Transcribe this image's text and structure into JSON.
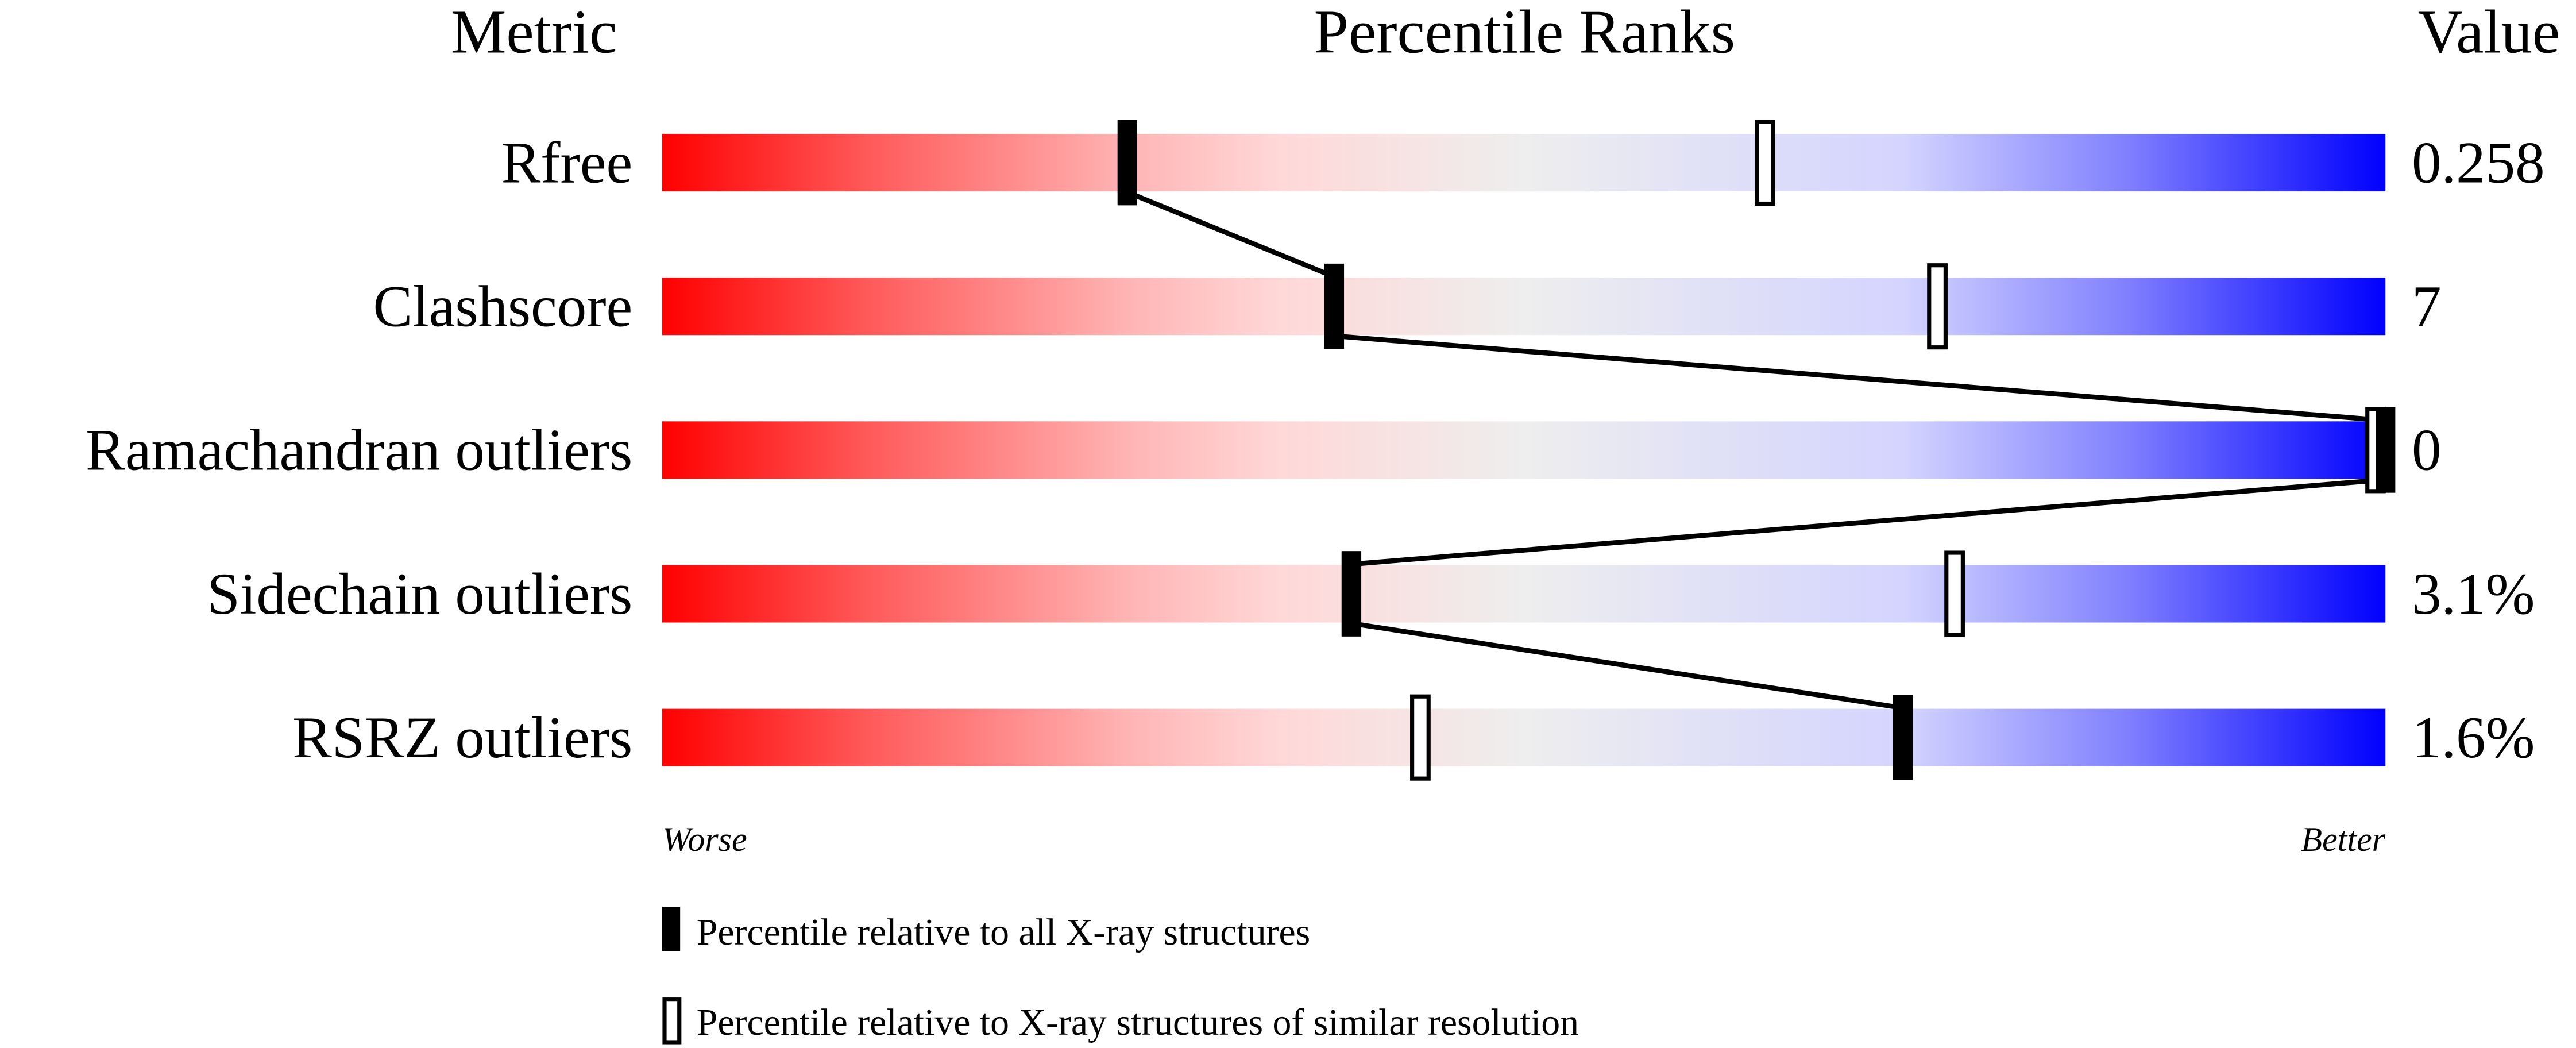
{
  "chart_data": {
    "type": "percentile-slider",
    "headers": {
      "metric": "Metric",
      "ranks": "Percentile Ranks",
      "value": "Value"
    },
    "xlim": [
      0,
      100
    ],
    "axis_labels": {
      "left": "Worse",
      "right": "Better"
    },
    "colors": {
      "worse": "#ff0000",
      "middle": "#eeeeee",
      "better": "#0000ff"
    },
    "rows": [
      {
        "metric": "Rfree",
        "value": "0.258",
        "percentile_all": 27,
        "percentile_similar": 64
      },
      {
        "metric": "Clashscore",
        "value": "7",
        "percentile_all": 39,
        "percentile_similar": 74
      },
      {
        "metric": "Ramachandran outliers",
        "value": "0",
        "percentile_all": 100,
        "percentile_similar": 100
      },
      {
        "metric": "Sidechain outliers",
        "value": "3.1%",
        "percentile_all": 40,
        "percentile_similar": 75
      },
      {
        "metric": "RSRZ outliers",
        "value": "1.6%",
        "percentile_all": 72,
        "percentile_similar": 44
      }
    ],
    "legend": [
      {
        "marker": "filled",
        "label": "Percentile relative to all X-ray structures"
      },
      {
        "marker": "open",
        "label": "Percentile relative to X-ray structures of similar resolution"
      }
    ]
  }
}
